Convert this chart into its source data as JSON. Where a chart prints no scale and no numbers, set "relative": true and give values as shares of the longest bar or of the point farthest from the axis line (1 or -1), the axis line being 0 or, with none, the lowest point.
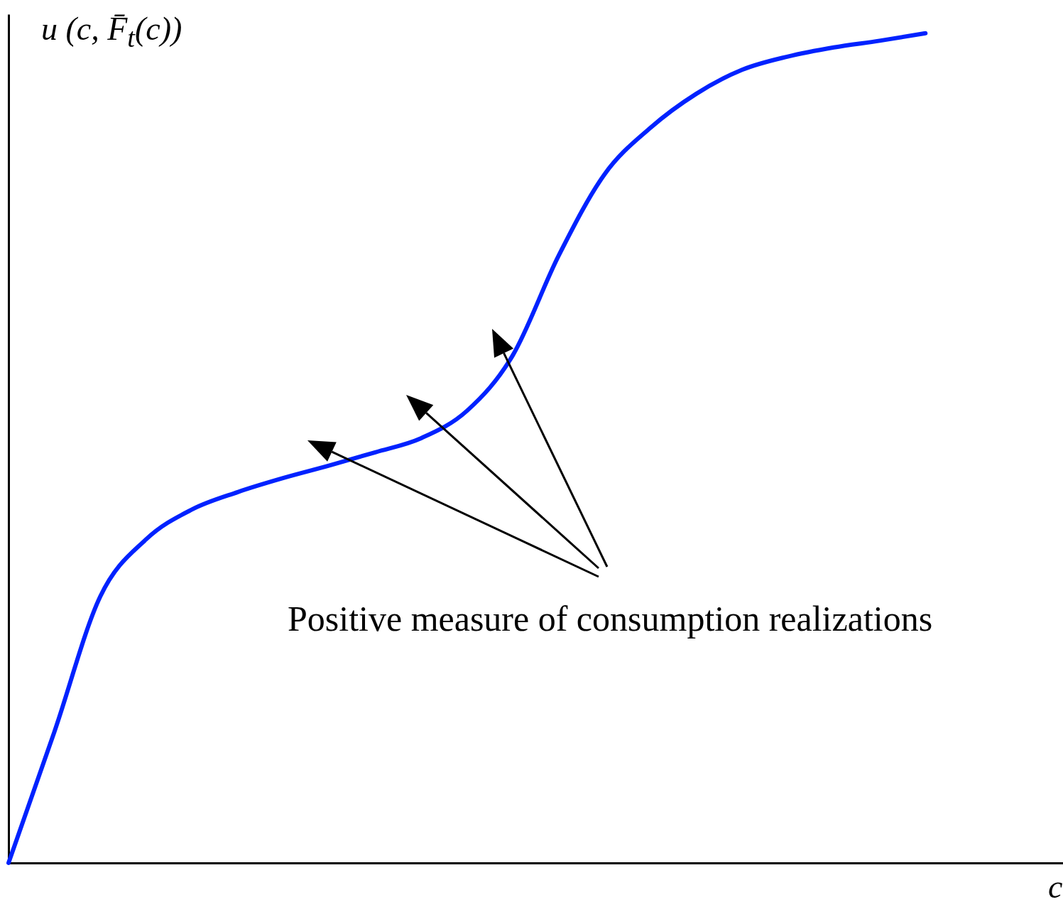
{
  "chart_data": {
    "type": "line",
    "relative": true,
    "ylabel": "u (c, F̄$_{t}$(c))",
    "xlabel": "c",
    "annotations": [
      "Positive measure of consumption realizations"
    ],
    "categories": [
      null,
      null,
      null,
      null,
      null,
      null,
      null,
      null,
      null,
      null,
      null,
      null,
      null,
      null,
      null,
      null,
      null,
      null,
      null,
      null,
      null,
      null,
      null,
      null
    ],
    "series": [
      {
        "color": "#0022ff",
        "values": [
          0,
          0.158,
          0.321,
          0.39,
          0.426,
          0.447,
          0.464,
          0.479,
          0.495,
          0.512,
          0.545,
          0.612,
          0.732,
          0.83,
          0.886,
          0.927,
          0.956,
          0.972,
          0.983,
          0.991,
          1,
          null,
          null,
          null
        ]
      }
    ]
  }
}
